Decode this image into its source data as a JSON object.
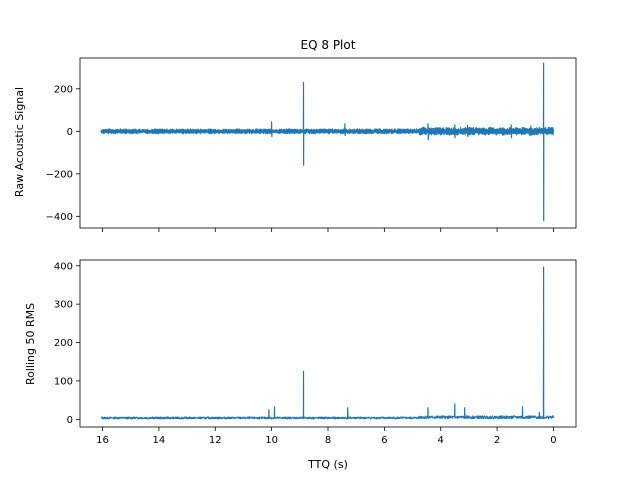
{
  "chart_data": [
    {
      "type": "line",
      "title": "EQ 8 Plot",
      "xlabel": "",
      "ylabel": "Raw Acoustic Signal",
      "xlim": [
        16.8,
        -0.8
      ],
      "xaxis_inverted": true,
      "x_tick_labels_shown": false,
      "ylim": [
        -455,
        345
      ],
      "yticks": [
        -400,
        -200,
        0,
        200
      ],
      "ytick_labels": [
        "−400",
        "−200",
        "0",
        "200"
      ],
      "xticks": [
        16,
        14,
        12,
        10,
        8,
        6,
        4,
        2,
        0
      ],
      "color": "#1f77b4",
      "x_range": [
        16.05,
        0.0
      ],
      "baseline_amplitude": 8,
      "spikes": [
        {
          "x": 8.87,
          "y_max": 230,
          "y_min": -160
        },
        {
          "x": 0.35,
          "y_max": 320,
          "y_min": -420
        }
      ],
      "bursts": [
        {
          "x": 10.0,
          "y_max": 45,
          "y_min": -25
        },
        {
          "x": 7.4,
          "y_max": 35,
          "y_min": -20
        },
        {
          "x": 4.45,
          "y_max": 35,
          "y_min": -40
        },
        {
          "x": 3.5,
          "y_max": 30,
          "y_min": -30
        },
        {
          "x": 3.05,
          "y_max": 28,
          "y_min": -25
        },
        {
          "x": 1.5,
          "y_max": 30,
          "y_min": -30
        },
        {
          "x": 0.8,
          "y_max": 25,
          "y_min": -20
        }
      ]
    },
    {
      "type": "line",
      "title": "",
      "xlabel": "TTQ (s)",
      "ylabel": "Rolling 50 RMS",
      "xlim": [
        16.8,
        -0.8
      ],
      "xaxis_inverted": true,
      "ylim": [
        -20,
        415
      ],
      "yticks": [
        0,
        100,
        200,
        300,
        400
      ],
      "ytick_labels": [
        "0",
        "100",
        "200",
        "300",
        "400"
      ],
      "xticks": [
        16,
        14,
        12,
        10,
        8,
        6,
        4,
        2,
        0
      ],
      "xtick_labels": [
        "16",
        "14",
        "12",
        "10",
        "8",
        "6",
        "4",
        "2",
        "0"
      ],
      "color": "#1f77b4",
      "x_range": [
        16.05,
        0.0
      ],
      "baseline_level": 4,
      "spikes": [
        {
          "x": 8.87,
          "y_max": 125
        },
        {
          "x": 0.35,
          "y_max": 397
        }
      ],
      "bursts": [
        {
          "x": 10.1,
          "y_max": 25
        },
        {
          "x": 9.9,
          "y_max": 32
        },
        {
          "x": 7.3,
          "y_max": 30
        },
        {
          "x": 4.45,
          "y_max": 30
        },
        {
          "x": 3.5,
          "y_max": 40
        },
        {
          "x": 3.15,
          "y_max": 30
        },
        {
          "x": 1.1,
          "y_max": 33
        },
        {
          "x": 0.5,
          "y_max": 18
        }
      ]
    }
  ]
}
